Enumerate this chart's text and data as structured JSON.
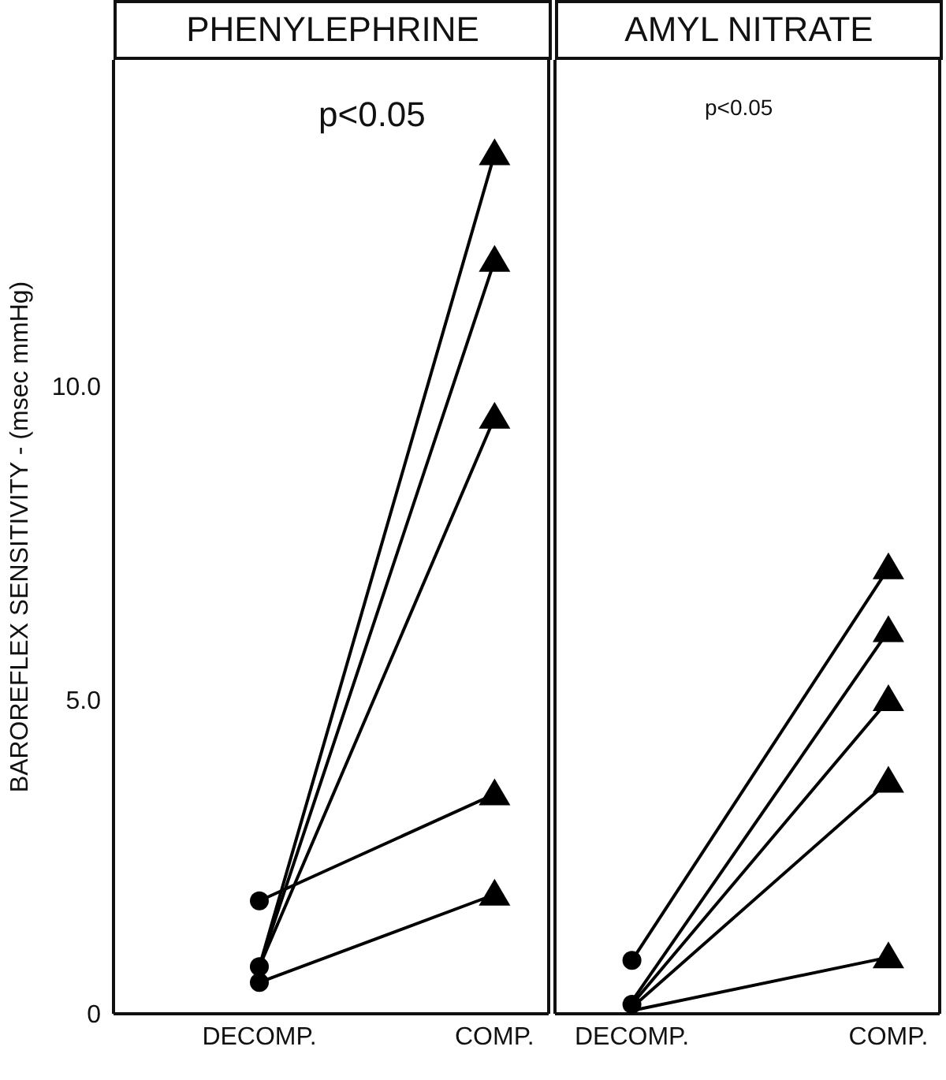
{
  "chart_data": [
    {
      "type": "line",
      "title": "PHENYLEPHRINE",
      "ylabel": "BAROREFLEX SENSITIVITY - (msec mmHg)",
      "categories": [
        "DECOMP.",
        "COMP."
      ],
      "ylim": [
        0,
        15.2
      ],
      "yticks": [
        0,
        {
          "value": 5,
          "label": "5.0"
        },
        {
          "value": 10,
          "label": "10.0"
        }
      ],
      "annotations": [
        "p<0.05"
      ],
      "marker": "none",
      "series": [
        {
          "color": "#000000",
          "values": [
            0.75,
            13.7
          ]
        },
        {
          "color": "#000000",
          "values": [
            0.75,
            12.0
          ]
        },
        {
          "color": "#000000",
          "values": [
            0.75,
            9.5
          ]
        },
        {
          "color": "#000000",
          "values": [
            1.8,
            3.5
          ]
        },
        {
          "color": "#000000",
          "values": [
            0.5,
            1.9
          ]
        },
        {
          "type": "scatter",
          "marker": "circle",
          "color": "#000000",
          "x": [
            "DECOMP.",
            "DECOMP.",
            "DECOMP.",
            "DECOMP.",
            "DECOMP."
          ],
          "values": [
            0.75,
            null,
            null,
            1.8,
            0.5
          ]
        },
        {
          "type": "scatter",
          "marker": "triangle",
          "color": "#000000",
          "x": [
            "COMP.",
            "COMP.",
            "COMP.",
            "COMP.",
            "COMP."
          ],
          "values": [
            13.7,
            12.0,
            9.5,
            3.5,
            1.9
          ]
        }
      ]
    },
    {
      "type": "line",
      "title": "AMYL NITRATE",
      "categories": [
        "DECOMP.",
        "COMP."
      ],
      "ylim": [
        0,
        15.2
      ],
      "tick_labels": "x",
      "annotations": [
        "p<0.05"
      ],
      "marker": "none",
      "series": [
        {
          "color": "#000000",
          "values": [
            0.85,
            7.1
          ]
        },
        {
          "color": "#000000",
          "values": [
            0.2,
            6.1
          ]
        },
        {
          "color": "#000000",
          "values": [
            0.15,
            5.0
          ]
        },
        {
          "color": "#000000",
          "values": [
            0.1,
            3.7
          ]
        },
        {
          "color": "#000000",
          "values": [
            0.05,
            0.9
          ]
        },
        {
          "type": "scatter",
          "marker": "circle",
          "color": "#000000",
          "x": [
            "DECOMP.",
            "DECOMP.",
            "DECOMP.",
            "DECOMP.",
            "DECOMP."
          ],
          "values": [
            0.85,
            0.15,
            null,
            null,
            null
          ]
        },
        {
          "type": "scatter",
          "marker": "triangle",
          "color": "#000000",
          "x": [
            "COMP.",
            "COMP.",
            "COMP.",
            "COMP.",
            "COMP."
          ],
          "values": [
            7.1,
            6.1,
            5.0,
            3.7,
            0.9
          ]
        }
      ]
    }
  ]
}
